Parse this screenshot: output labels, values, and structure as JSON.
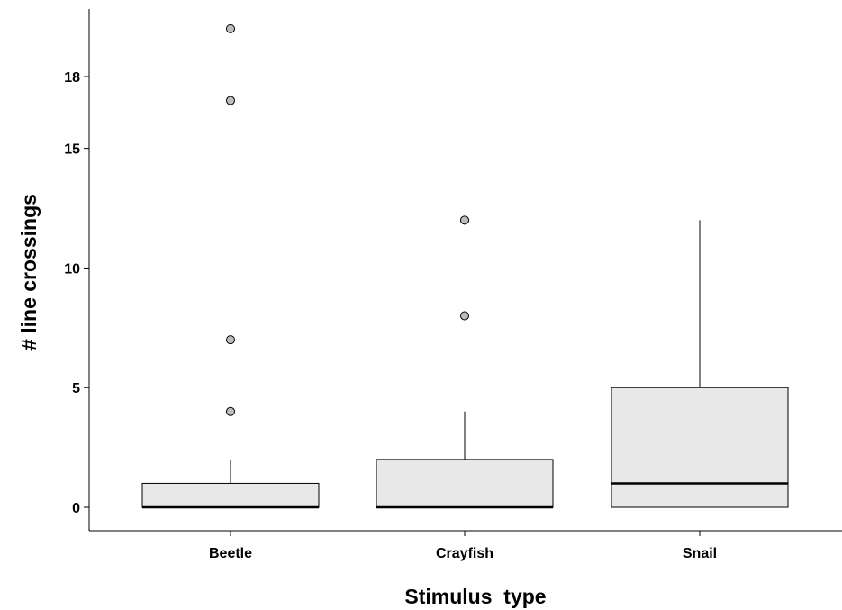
{
  "chart_data": {
    "type": "boxplot",
    "title": "",
    "xlabel": "Stimulus  type",
    "ylabel": "# line crossings",
    "ylim": [
      -1.2,
      22.3
    ],
    "yticks": [
      0,
      5,
      10,
      15,
      18
    ],
    "categories": [
      "Beetle",
      "Crayfish",
      "Snail"
    ],
    "boxes": [
      {
        "category": "Beetle",
        "whisker_low": 0,
        "q1": 0,
        "median": 0,
        "q3": 1,
        "whisker_high": 2,
        "outliers": [
          4,
          7,
          17,
          20
        ]
      },
      {
        "category": "Crayfish",
        "whisker_low": 0,
        "q1": 0,
        "median": 0,
        "q3": 2,
        "whisker_high": 4,
        "outliers": [
          8,
          12
        ]
      },
      {
        "category": "Snail",
        "whisker_low": 0,
        "q1": 0,
        "median": 1,
        "q3": 5,
        "whisker_high": 12,
        "outliers": []
      }
    ],
    "grid": false,
    "colors": {
      "box_fill": "#e8e8e8",
      "outlier_fill": "#bdbdbd",
      "line": "#000000"
    }
  }
}
